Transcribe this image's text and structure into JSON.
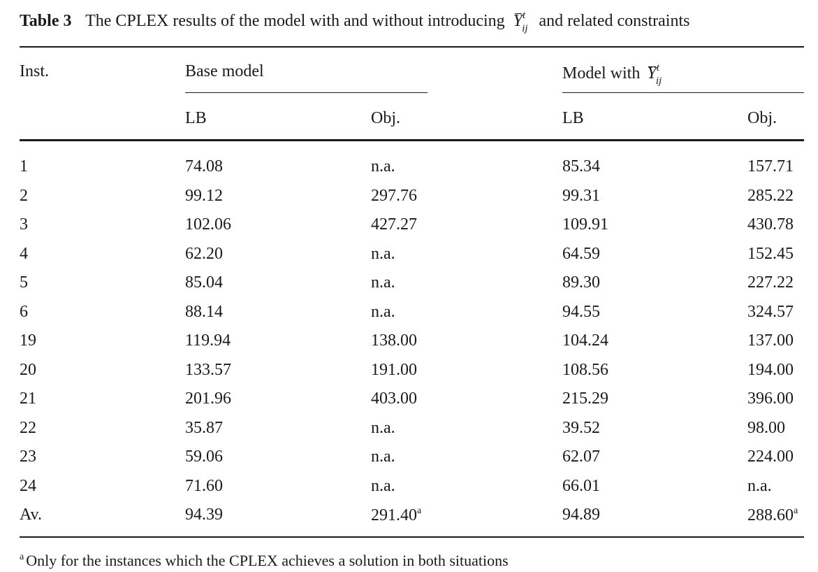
{
  "caption": {
    "label": "Table 3",
    "text_before": "The CPLEX results of the model with and without introducing",
    "symbol_base": "Y",
    "symbol_sup": "t",
    "symbol_sub": "ij",
    "text_after": "and related constraints"
  },
  "header": {
    "inst": "Inst.",
    "group_base": "Base model",
    "group_with_prefix": "Model with",
    "symbol_base": "Y",
    "symbol_sup": "t",
    "symbol_sub": "ij",
    "lb1": "LB",
    "obj1": "Obj.",
    "lb2": "LB",
    "obj2": "Obj."
  },
  "rows": [
    {
      "inst": "1",
      "lb1": "74.08",
      "obj1": "n.a.",
      "lb2": "85.34",
      "obj2": "157.71"
    },
    {
      "inst": "2",
      "lb1": "99.12",
      "obj1": "297.76",
      "lb2": "99.31",
      "obj2": "285.22"
    },
    {
      "inst": "3",
      "lb1": "102.06",
      "obj1": "427.27",
      "lb2": "109.91",
      "obj2": "430.78"
    },
    {
      "inst": "4",
      "lb1": "62.20",
      "obj1": "n.a.",
      "lb2": "64.59",
      "obj2": "152.45"
    },
    {
      "inst": "5",
      "lb1": "85.04",
      "obj1": "n.a.",
      "lb2": "89.30",
      "obj2": "227.22"
    },
    {
      "inst": "6",
      "lb1": "88.14",
      "obj1": "n.a.",
      "lb2": "94.55",
      "obj2": "324.57"
    },
    {
      "inst": "19",
      "lb1": "119.94",
      "obj1": "138.00",
      "lb2": "104.24",
      "obj2": "137.00"
    },
    {
      "inst": "20",
      "lb1": "133.57",
      "obj1": "191.00",
      "lb2": "108.56",
      "obj2": "194.00"
    },
    {
      "inst": "21",
      "lb1": "201.96",
      "obj1": "403.00",
      "lb2": "215.29",
      "obj2": "396.00"
    },
    {
      "inst": "22",
      "lb1": "35.87",
      "obj1": "n.a.",
      "lb2": "39.52",
      "obj2": "98.00"
    },
    {
      "inst": "23",
      "lb1": "59.06",
      "obj1": "n.a.",
      "lb2": "62.07",
      "obj2": "224.00"
    },
    {
      "inst": "24",
      "lb1": "71.60",
      "obj1": "n.a.",
      "lb2": "66.01",
      "obj2": "n.a."
    },
    {
      "inst": "Av.",
      "lb1": "94.39",
      "obj1": "291.40",
      "obj1_sup": "a",
      "lb2": "94.89",
      "obj2": "288.60",
      "obj2_sup": "a"
    }
  ],
  "footnote": {
    "marker": "a",
    "text": "Only for the instances which the CPLEX achieves a solution in both situations"
  }
}
